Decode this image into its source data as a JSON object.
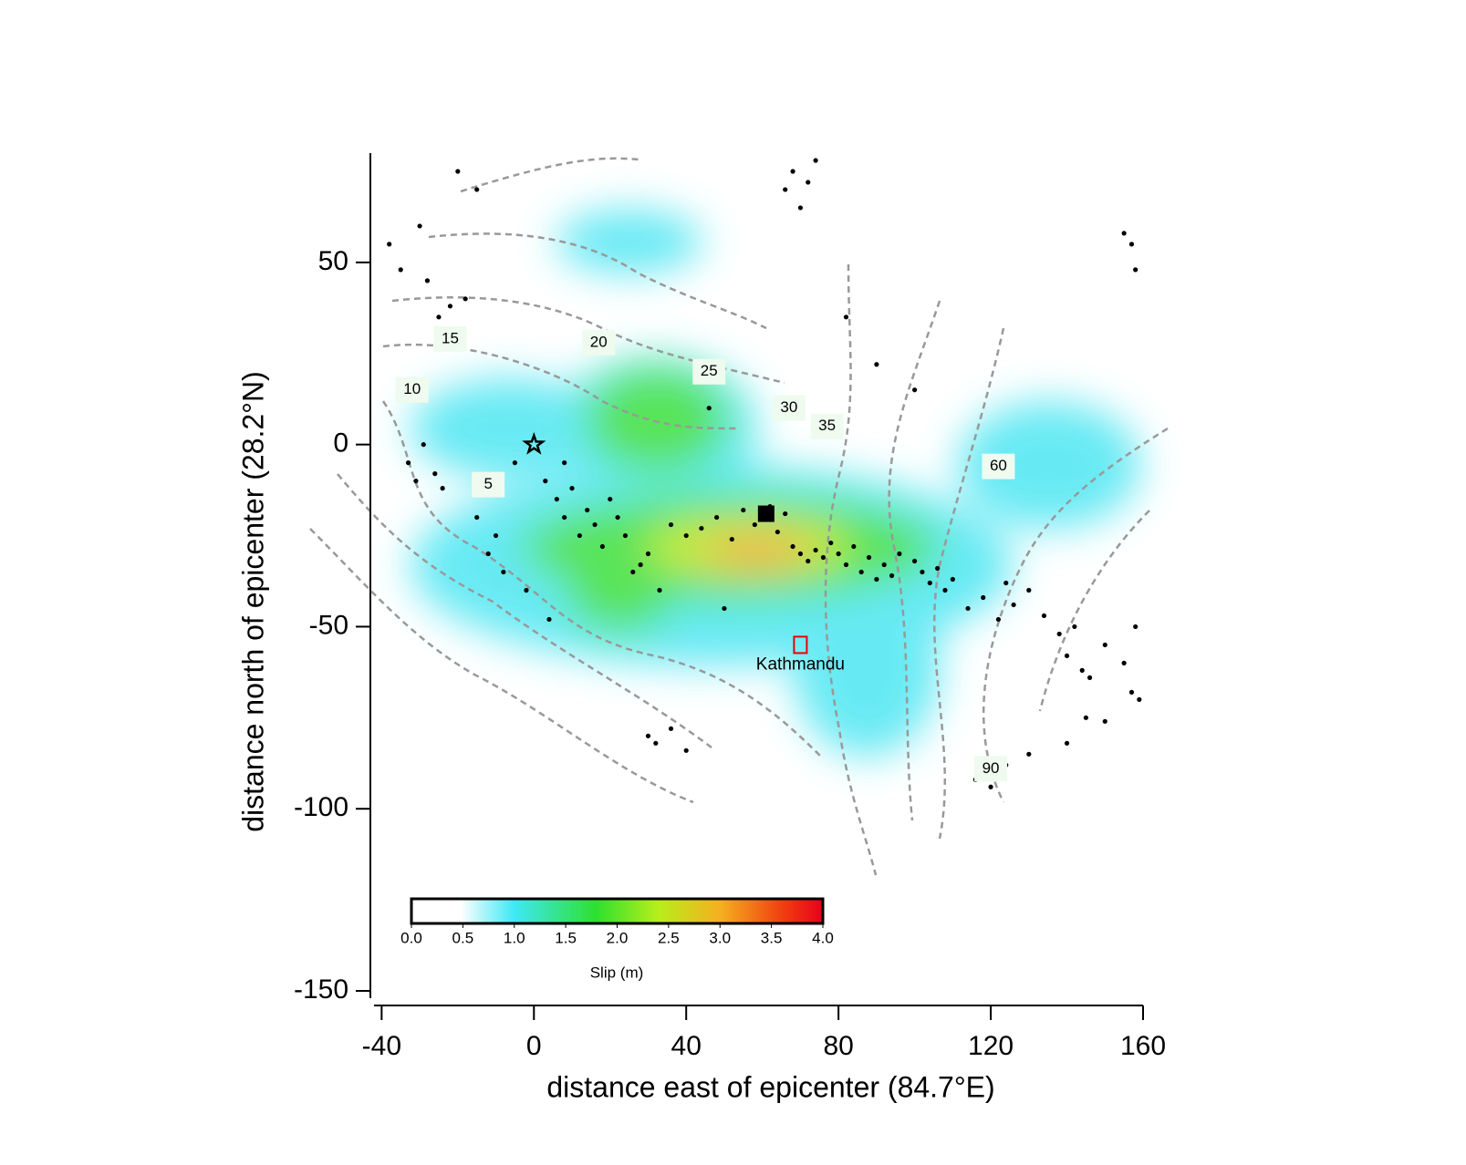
{
  "chart_data": {
    "type": "scatter",
    "xlabel": "distance east of epicenter (84.7°E)",
    "ylabel": "distance north of epicenter (28.2°N)",
    "xlim": [
      -42,
      160
    ],
    "ylim": [
      -152,
      80
    ],
    "xticks": [
      -40,
      0,
      40,
      80,
      120,
      160
    ],
    "yticks": [
      50,
      0,
      -50,
      -100,
      -150
    ],
    "colorbar": {
      "label": "Slip (m)",
      "lim": [
        0,
        4
      ],
      "ticks": [
        {
          "value": 0,
          "label": "0.0"
        },
        {
          "value": 0.5,
          "label": "0.5"
        },
        {
          "value": 1,
          "label": "1.0"
        },
        {
          "value": 1.5,
          "label": "1.5"
        },
        {
          "value": 2,
          "label": "2.0"
        },
        {
          "value": 2.5,
          "label": "2.5"
        },
        {
          "value": 3,
          "label": "3.0"
        },
        {
          "value": 3.5,
          "label": "3.5"
        },
        {
          "value": 4,
          "label": "4.0"
        }
      ]
    },
    "contour_labels": [
      {
        "value": 15,
        "x": -22,
        "y": 29
      },
      {
        "value": 10,
        "x": -32,
        "y": 15
      },
      {
        "value": 20,
        "x": 17,
        "y": 28
      },
      {
        "value": 25,
        "x": 46,
        "y": 20
      },
      {
        "value": 30,
        "x": 67,
        "y": 10
      },
      {
        "value": 35,
        "x": 77,
        "y": 5
      },
      {
        "value": 5,
        "x": -12,
        "y": -11
      },
      {
        "value": 60,
        "x": 122,
        "y": -6
      },
      {
        "value": 90,
        "x": 120,
        "y": -89
      }
    ],
    "annotations": [
      {
        "text": "Kathmandu",
        "x": 70,
        "y": -55
      }
    ],
    "epicenter": {
      "x": 0,
      "y": 0
    },
    "mainshock_aftershock": {
      "x": 61,
      "y": -19
    },
    "aftershocks": {
      "x": [
        -38,
        -35,
        -30,
        -28,
        -25,
        -22,
        -20,
        -18,
        -33,
        -31,
        -29,
        -26,
        -24,
        -15,
        -10,
        -12,
        -8,
        -5,
        -2,
        3,
        6,
        8,
        10,
        12,
        14,
        16,
        18,
        20,
        22,
        24,
        26,
        28,
        30,
        33,
        36,
        40,
        44,
        48,
        52,
        55,
        58,
        60,
        62,
        64,
        66,
        68,
        70,
        72,
        74,
        76,
        78,
        80,
        82,
        84,
        86,
        88,
        90,
        92,
        94,
        96,
        100,
        102,
        104,
        106,
        108,
        110,
        114,
        118,
        122,
        124,
        126,
        130,
        134,
        138,
        140,
        142,
        144,
        146,
        150,
        155,
        158,
        159,
        66,
        68,
        70,
        72,
        74,
        155,
        157,
        158,
        30,
        32,
        36,
        40,
        116,
        120,
        124,
        130,
        140,
        145,
        150,
        157,
        -20,
        -15,
        8,
        4,
        50,
        90,
        100,
        46,
        82
      ],
      "y": [
        55,
        48,
        60,
        45,
        35,
        38,
        30,
        40,
        -5,
        -10,
        0,
        -8,
        -12,
        -20,
        -25,
        -30,
        -35,
        -5,
        -40,
        -10,
        -15,
        -20,
        -12,
        -25,
        -18,
        -22,
        -28,
        -15,
        -20,
        -25,
        -35,
        -33,
        -30,
        -40,
        -22,
        -25,
        -23,
        -20,
        -26,
        -18,
        -22,
        -20,
        -17,
        -24,
        -19,
        -28,
        -30,
        -32,
        -29,
        -31,
        -27,
        -30,
        -33,
        -28,
        -35,
        -31,
        -37,
        -33,
        -36,
        -30,
        -32,
        -35,
        -38,
        -34,
        -40,
        -37,
        -45,
        -42,
        -48,
        -38,
        -44,
        -40,
        -47,
        -52,
        -58,
        -50,
        -62,
        -64,
        -55,
        -60,
        -50,
        -70,
        70,
        75,
        65,
        72,
        78,
        58,
        55,
        48,
        -80,
        -82,
        -78,
        -84,
        -92,
        -94,
        -88,
        -85,
        -82,
        -75,
        -76,
        -68,
        75,
        70,
        -5,
        -48,
        -45,
        22,
        15,
        10,
        35
      ],
      "color": "#000"
    }
  }
}
